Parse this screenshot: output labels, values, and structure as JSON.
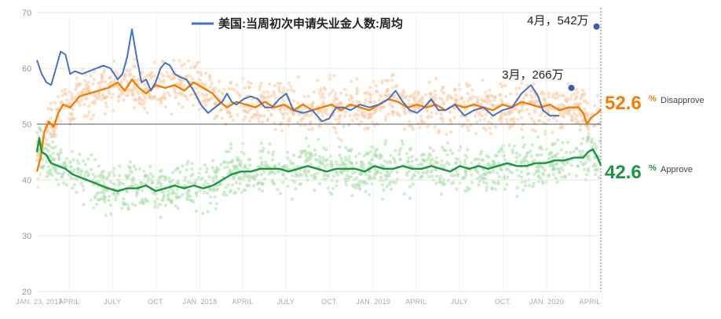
{
  "chart_data": {
    "type": "line",
    "title": "",
    "ylim": [
      20,
      70
    ],
    "yticks": [
      20,
      30,
      40,
      50,
      60,
      70
    ],
    "reference_line": 50,
    "xlim_days": [
      0,
      1187
    ],
    "xticks": [
      {
        "label": "JAN. 23, 2017",
        "day": 0
      },
      {
        "label": "APRIL",
        "day": 68
      },
      {
        "label": "JULY",
        "day": 159
      },
      {
        "label": "OCT.",
        "day": 251
      },
      {
        "label": "JAN. 2018",
        "day": 343
      },
      {
        "label": "APRIL",
        "day": 433
      },
      {
        "label": "JULY",
        "day": 524
      },
      {
        "label": "OCT.",
        "day": 616
      },
      {
        "label": "JAN. 2019",
        "day": 708
      },
      {
        "label": "APRIL",
        "day": 798
      },
      {
        "label": "JULY",
        "day": 889
      },
      {
        "label": "OCT.",
        "day": 981
      },
      {
        "label": "JAN. 2020",
        "day": 1073
      },
      {
        "label": "APRIL",
        "day": 1164
      }
    ],
    "series": [
      {
        "name": "Disapprove",
        "color": "#f57c00",
        "latest_value": "52.6",
        "x": [
          0,
          8,
          15,
          25,
          35,
          45,
          55,
          70,
          90,
          110,
          130,
          150,
          170,
          185,
          200,
          215,
          230,
          250,
          270,
          290,
          310,
          330,
          350,
          370,
          385,
          400,
          420,
          440,
          460,
          480,
          500,
          520,
          540,
          560,
          580,
          600,
          620,
          640,
          660,
          680,
          700,
          720,
          740,
          760,
          780,
          800,
          820,
          840,
          860,
          880,
          900,
          920,
          940,
          960,
          980,
          1000,
          1020,
          1040,
          1060,
          1080,
          1100,
          1120,
          1140,
          1150,
          1158,
          1165,
          1172,
          1180,
          1187
        ],
        "values": [
          41.5,
          44.0,
          48.5,
          50.5,
          49.5,
          52.0,
          53.5,
          53.0,
          55.0,
          55.5,
          56.0,
          56.5,
          57.5,
          56.0,
          58.0,
          56.5,
          55.5,
          57.0,
          56.5,
          57.0,
          56.0,
          57.5,
          56.5,
          55.5,
          54.0,
          53.0,
          54.0,
          53.5,
          53.0,
          54.0,
          53.0,
          53.5,
          52.5,
          53.5,
          52.5,
          53.0,
          53.5,
          52.5,
          53.5,
          53.0,
          52.5,
          53.5,
          54.5,
          54.0,
          53.0,
          53.5,
          53.0,
          53.5,
          52.5,
          53.5,
          53.0,
          53.5,
          53.0,
          52.5,
          53.5,
          53.0,
          54.0,
          53.5,
          53.0,
          53.5,
          52.5,
          53.0,
          53.0,
          52.0,
          50.0,
          51.0,
          51.5,
          52.0,
          52.6
        ]
      },
      {
        "name": "Approve",
        "color": "#1a9641",
        "latest_value": "42.6",
        "x": [
          0,
          5,
          10,
          20,
          30,
          45,
          60,
          75,
          90,
          105,
          120,
          135,
          150,
          170,
          190,
          210,
          230,
          250,
          270,
          290,
          310,
          330,
          350,
          370,
          390,
          410,
          430,
          450,
          470,
          490,
          510,
          530,
          550,
          570,
          590,
          610,
          630,
          650,
          670,
          690,
          710,
          730,
          750,
          770,
          790,
          810,
          830,
          850,
          870,
          890,
          910,
          930,
          950,
          970,
          990,
          1010,
          1030,
          1050,
          1070,
          1090,
          1110,
          1130,
          1150,
          1160,
          1170,
          1180,
          1187
        ],
        "values": [
          45.0,
          47.5,
          45.0,
          44.5,
          43.0,
          42.5,
          42.0,
          41.0,
          40.5,
          40.0,
          39.5,
          39.0,
          38.5,
          38.0,
          38.5,
          38.5,
          39.0,
          38.0,
          38.5,
          39.0,
          38.5,
          39.0,
          38.5,
          39.0,
          40.0,
          41.0,
          41.5,
          41.5,
          42.0,
          42.0,
          42.0,
          41.5,
          42.0,
          42.5,
          42.0,
          41.5,
          42.0,
          42.0,
          42.0,
          41.5,
          42.5,
          42.0,
          42.0,
          42.5,
          42.0,
          42.0,
          42.5,
          42.0,
          41.5,
          42.5,
          42.0,
          42.5,
          42.0,
          42.5,
          43.0,
          42.5,
          42.5,
          43.0,
          43.0,
          43.5,
          43.5,
          44.0,
          44.0,
          45.0,
          45.5,
          44.0,
          42.6
        ]
      },
      {
        "name": "美国:当周初次申请失业金人数:周均",
        "color": "#4472c4",
        "x": [
          0,
          10,
          20,
          30,
          40,
          50,
          60,
          70,
          80,
          95,
          110,
          125,
          140,
          155,
          170,
          180,
          190,
          200,
          210,
          220,
          230,
          240,
          250,
          260,
          270,
          280,
          290,
          300,
          315,
          330,
          345,
          360,
          375,
          390,
          400,
          410,
          420,
          435,
          450,
          465,
          480,
          495,
          510,
          525,
          540,
          560,
          580,
          600,
          615,
          630,
          645,
          660,
          680,
          700,
          720,
          740,
          755,
          770,
          785,
          800,
          815,
          830,
          845,
          860,
          880,
          900,
          920,
          940,
          960,
          980,
          1000,
          1020,
          1040,
          1055,
          1065,
          1080,
          1100
        ],
        "values": [
          61.5,
          59.0,
          57.5,
          57.0,
          60.0,
          63.0,
          62.5,
          59.0,
          59.5,
          59.0,
          59.5,
          60.0,
          60.5,
          60.0,
          58.0,
          59.0,
          62.0,
          67.0,
          62.0,
          57.5,
          58.0,
          56.0,
          57.5,
          60.0,
          61.0,
          60.5,
          59.0,
          58.5,
          58.0,
          56.0,
          53.5,
          52.0,
          53.0,
          54.0,
          55.5,
          54.0,
          53.5,
          54.5,
          55.0,
          54.5,
          53.0,
          53.0,
          54.5,
          55.5,
          52.5,
          52.0,
          52.5,
          50.5,
          51.0,
          53.0,
          53.0,
          52.5,
          53.5,
          53.0,
          53.5,
          54.5,
          56.0,
          54.0,
          52.5,
          52.0,
          53.0,
          54.5,
          52.5,
          52.5,
          53.5,
          51.5,
          52.5,
          53.0,
          51.5,
          52.5,
          53.0,
          55.5,
          57.0,
          55.0,
          52.5,
          51.5,
          51.5
        ]
      }
    ],
    "annotations": [
      {
        "text": "3月，266万",
        "day": 1125,
        "value": 56.5
      },
      {
        "text": "4月，542万",
        "day": 1178,
        "value": 67.5
      }
    ],
    "legend": {
      "label": "美国:当周初次申请失业金人数:周均",
      "placement": "top"
    }
  }
}
